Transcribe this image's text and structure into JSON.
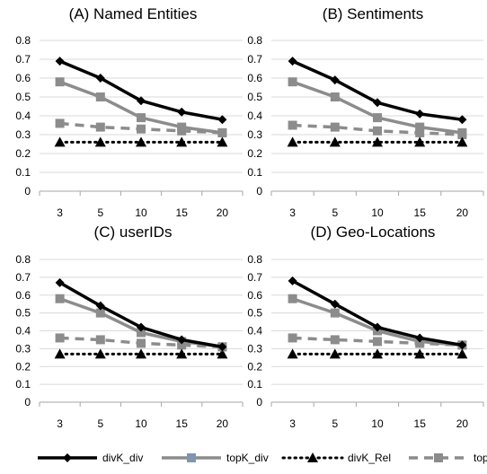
{
  "chart_data": [
    {
      "type": "line",
      "title": "(A) Named Entities",
      "categories": [
        "3",
        "5",
        "10",
        "15",
        "20"
      ],
      "yticks": [
        "0",
        "0.1",
        "0.2",
        "0.3",
        "0.4",
        "0.5",
        "0.6",
        "0.7",
        "0.8"
      ],
      "ylim": [
        0,
        0.8
      ],
      "grid": true,
      "series": [
        {
          "name": "divK_div",
          "values": [
            0.69,
            0.6,
            0.48,
            0.42,
            0.38
          ]
        },
        {
          "name": "topK_div",
          "values": [
            0.58,
            0.5,
            0.39,
            0.34,
            0.31
          ]
        },
        {
          "name": "divK_Rel",
          "values": [
            0.26,
            0.26,
            0.26,
            0.26,
            0.26
          ]
        },
        {
          "name": "topK_Rel",
          "values": [
            0.36,
            0.34,
            0.33,
            0.32,
            0.31
          ]
        }
      ]
    },
    {
      "type": "line",
      "title": "(B) Sentiments",
      "categories": [
        "3",
        "5",
        "10",
        "15",
        "20"
      ],
      "yticks": [
        "0",
        "0.1",
        "0.2",
        "0.3",
        "0.4",
        "0.5",
        "0.6",
        "0.7",
        "0.8"
      ],
      "ylim": [
        0,
        0.8
      ],
      "grid": true,
      "series": [
        {
          "name": "divK_div",
          "values": [
            0.69,
            0.59,
            0.47,
            0.41,
            0.38
          ]
        },
        {
          "name": "topK_div",
          "values": [
            0.58,
            0.5,
            0.39,
            0.34,
            0.31
          ]
        },
        {
          "name": "divK_Rel",
          "values": [
            0.26,
            0.26,
            0.26,
            0.26,
            0.26
          ]
        },
        {
          "name": "topK_Rel",
          "values": [
            0.35,
            0.34,
            0.32,
            0.31,
            0.3
          ]
        }
      ]
    },
    {
      "type": "line",
      "title": "(C) userIDs",
      "categories": [
        "3",
        "5",
        "10",
        "15",
        "20"
      ],
      "yticks": [
        "0",
        "0.1",
        "0.2",
        "0.3",
        "0.4",
        "0.5",
        "0.6",
        "0.7",
        "0.8"
      ],
      "ylim": [
        0,
        0.8
      ],
      "grid": true,
      "series": [
        {
          "name": "divK_div",
          "values": [
            0.67,
            0.54,
            0.42,
            0.35,
            0.31
          ]
        },
        {
          "name": "topK_div",
          "values": [
            0.58,
            0.5,
            0.39,
            0.34,
            0.31
          ]
        },
        {
          "name": "divK_Rel",
          "values": [
            0.27,
            0.27,
            0.27,
            0.27,
            0.27
          ]
        },
        {
          "name": "topK_Rel",
          "values": [
            0.36,
            0.35,
            0.33,
            0.32,
            0.31
          ]
        }
      ]
    },
    {
      "type": "line",
      "title": "(D) Geo-Locations",
      "categories": [
        "3",
        "5",
        "10",
        "15",
        "20"
      ],
      "yticks": [
        "0",
        "0.1",
        "0.2",
        "0.3",
        "0.4",
        "0.5",
        "0.6",
        "0.7",
        "0.8"
      ],
      "ylim": [
        0,
        0.8
      ],
      "grid": true,
      "series": [
        {
          "name": "divK_div",
          "values": [
            0.68,
            0.55,
            0.42,
            0.36,
            0.32
          ]
        },
        {
          "name": "topK_div",
          "values": [
            0.58,
            0.5,
            0.4,
            0.34,
            0.32
          ]
        },
        {
          "name": "divK_Rel",
          "values": [
            0.27,
            0.27,
            0.27,
            0.27,
            0.27
          ]
        },
        {
          "name": "topK_Rel",
          "values": [
            0.36,
            0.35,
            0.34,
            0.33,
            0.32
          ]
        }
      ]
    }
  ],
  "legend": {
    "position": "bottom",
    "items": [
      {
        "label": "divK_div",
        "color": "#000000",
        "dash": "solid",
        "marker": "diamond"
      },
      {
        "label": "topK_div",
        "color": "#8c8c8c",
        "dash": "solid",
        "marker": "square",
        "marker_color": "#7f95b0"
      },
      {
        "label": "divK_Rel",
        "color": "#000000",
        "dash": "dotted",
        "marker": "triangle"
      },
      {
        "label": "topK_Rel",
        "color": "#8c8c8c",
        "dash": "dashed",
        "marker": "square"
      }
    ]
  }
}
